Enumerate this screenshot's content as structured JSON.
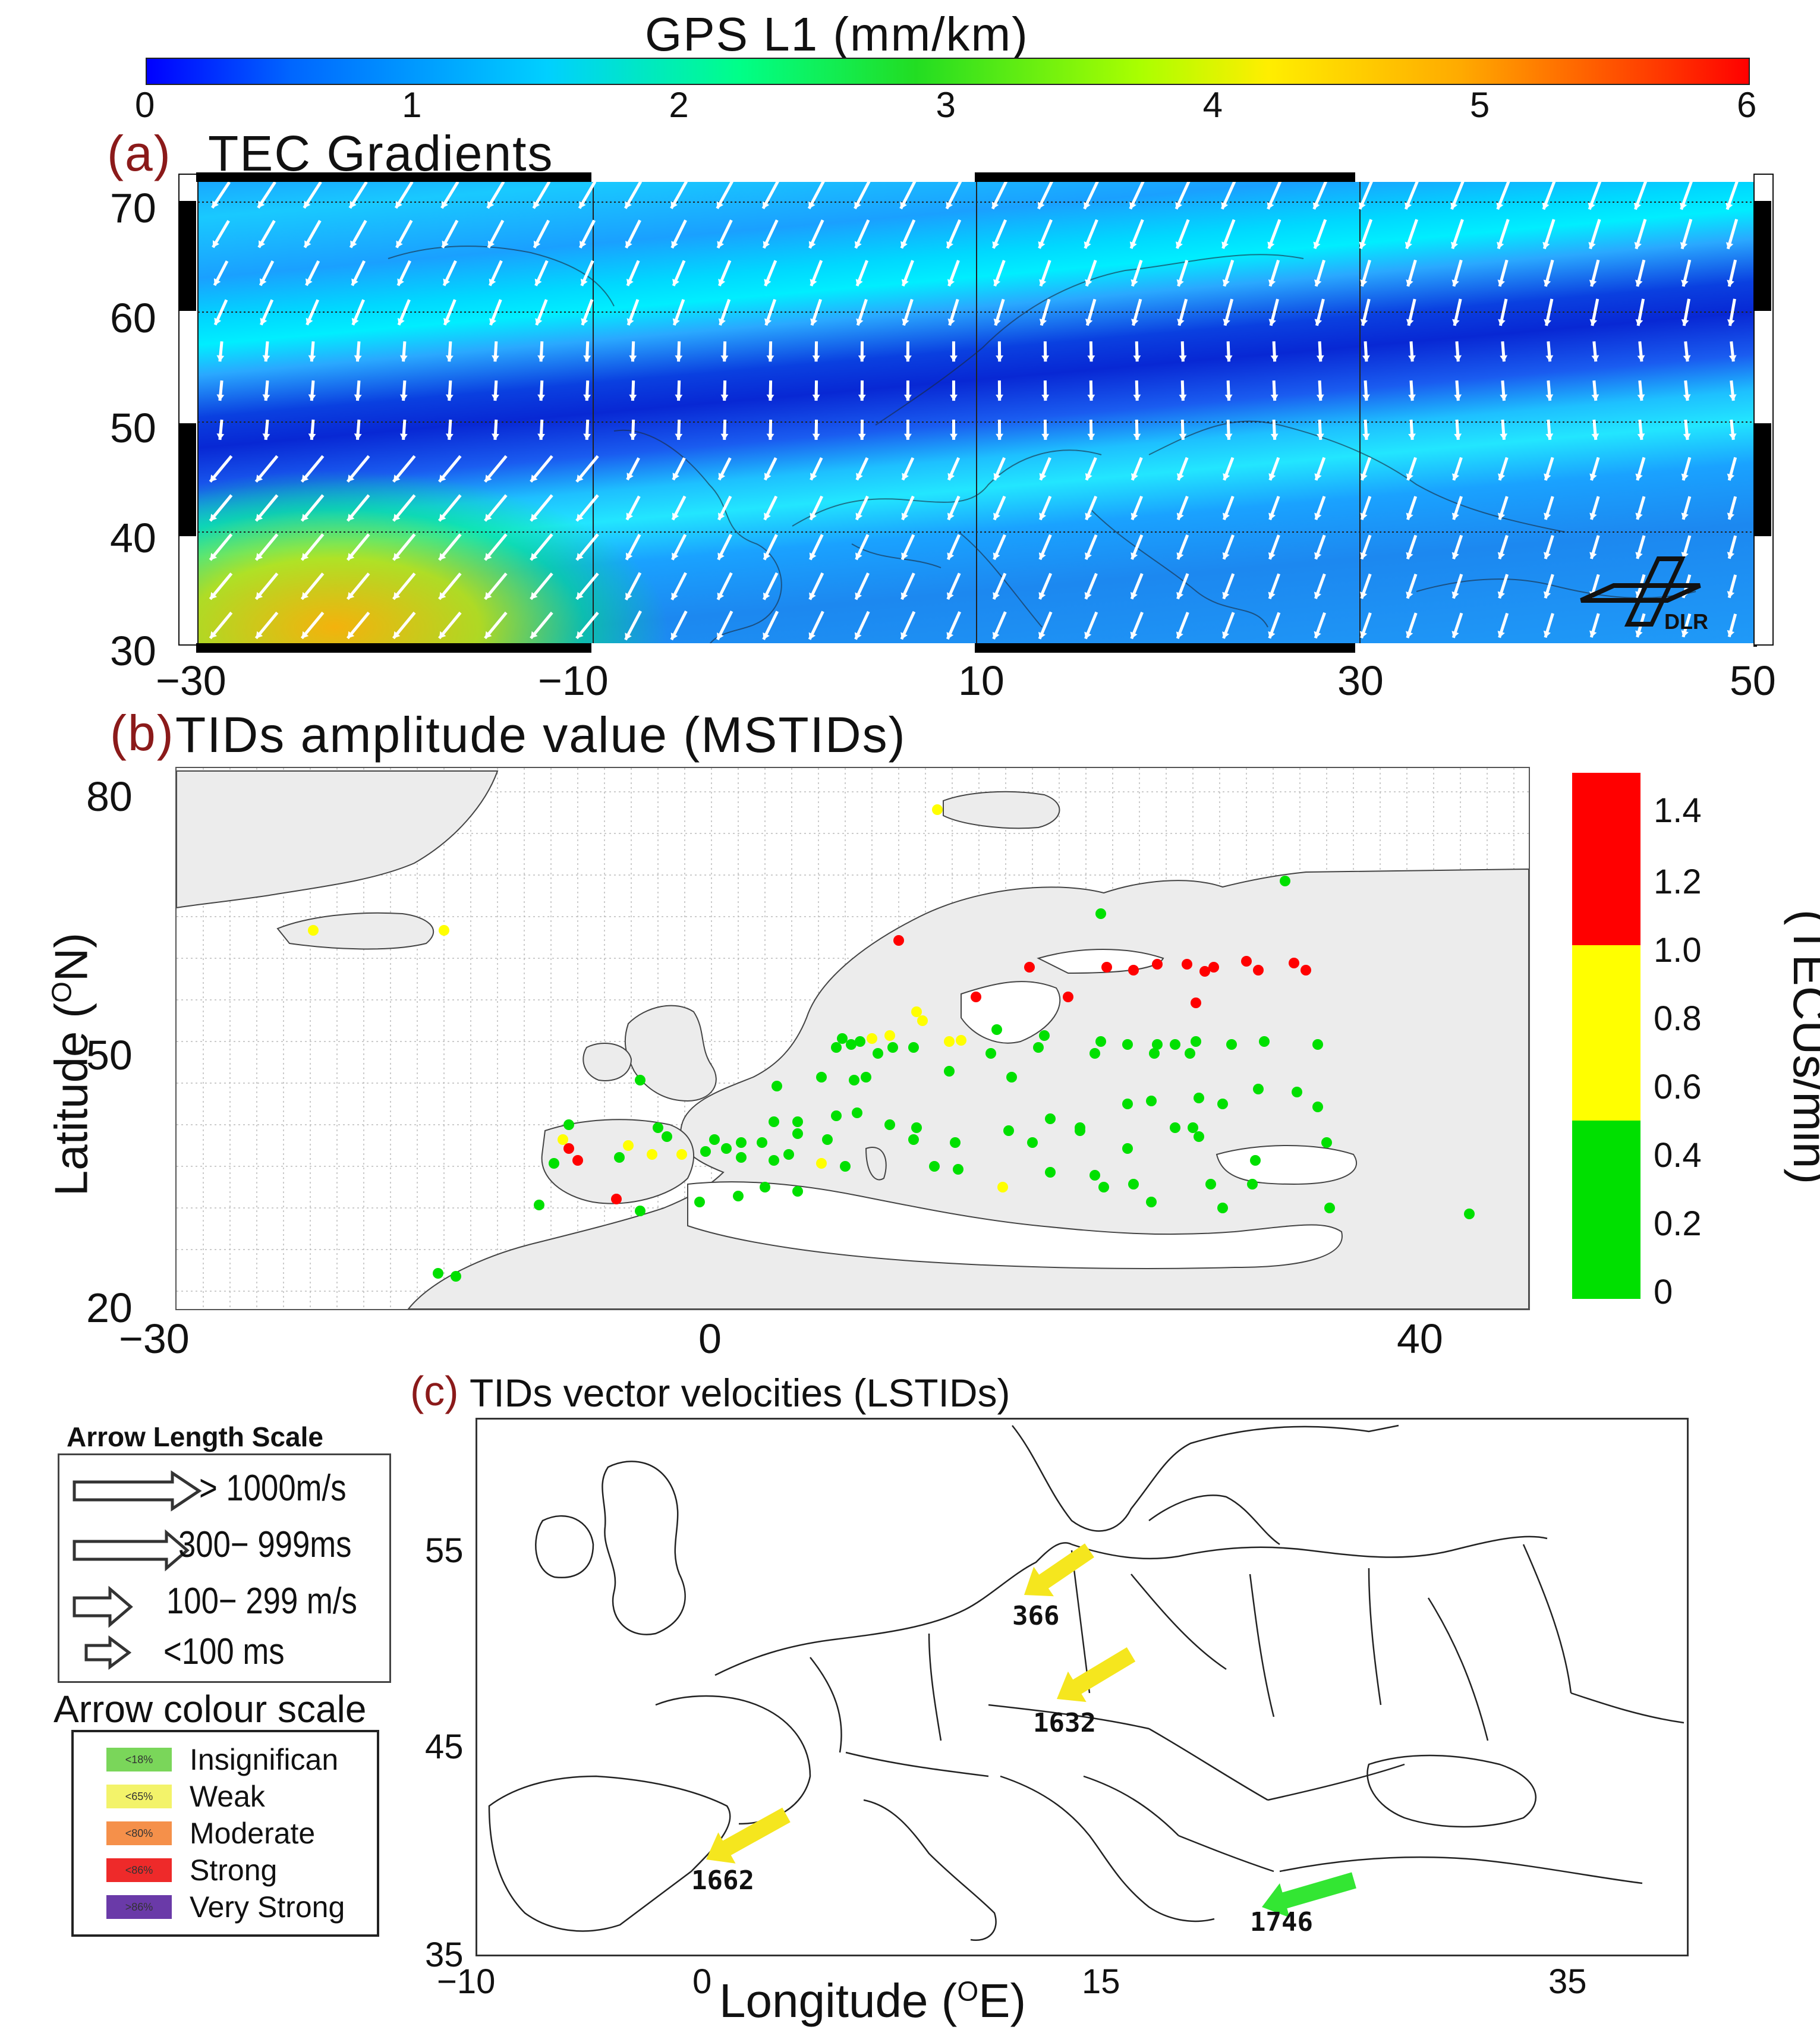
{
  "top_colorbar": {
    "title": "GPS L1 (mm/km)",
    "ticks": [
      "0",
      "1",
      "2",
      "3",
      "4",
      "5",
      "6"
    ]
  },
  "panel_a": {
    "tag": "(a)",
    "title": "TEC Gradients",
    "y_ticks": [
      "70",
      "60",
      "50",
      "40",
      "30"
    ],
    "x_ticks": [
      "−30",
      "−10",
      "10",
      "30",
      "50"
    ],
    "logo_text": "DLR"
  },
  "panel_b": {
    "tag": "(b)",
    "title": "TIDs amplitude value (MSTIDs)",
    "y_label": "Latitude (ON)",
    "y_label_main": "Latitude (",
    "y_label_sup": "O",
    "y_label_end": "N)",
    "y_ticks": [
      "80",
      "50",
      "20"
    ],
    "x_ticks": [
      "−30",
      "0",
      "40"
    ],
    "colorbar_label": "(TECUs/min)",
    "colorbar_ticks": [
      "1.4",
      "1.2",
      "1.0",
      "0.8",
      "0.6",
      "0.4",
      "0.2",
      "0"
    ],
    "colorbar_colors": {
      "high": "#ff0000",
      "mid": "#ffff00",
      "low": "#00e000"
    }
  },
  "panel_c": {
    "tag": "(c)",
    "title": "TIDs vector velocities (LSTIDs)",
    "y_ticks": [
      "55",
      "45",
      "35"
    ],
    "x_ticks": [
      "−10",
      "0",
      "15",
      "35"
    ],
    "x_label": "Longitude (OE)",
    "x_label_main": "Longitude (",
    "x_label_sup": "O",
    "x_label_end": "E)",
    "arrows": [
      {
        "label": "366",
        "color": "#f5e61e"
      },
      {
        "label": "1632",
        "color": "#f5e61e"
      },
      {
        "label": "1662",
        "color": "#f5e61e"
      },
      {
        "label": "1746",
        "color": "#33e633"
      }
    ]
  },
  "arrow_length_scale": {
    "title": "Arrow Length Scale",
    "items": [
      "> 1000m/s",
      "300− 999ms",
      "100− 299 m/s",
      "<100 ms"
    ]
  },
  "arrow_colour_scale": {
    "title": "Arrow colour scale",
    "items": [
      {
        "swatch": "<18%",
        "label": "Insignifican",
        "color": "#7ad65a"
      },
      {
        "swatch": "<65%",
        "label": "Weak",
        "color": "#f3f36a"
      },
      {
        "swatch": "<80%",
        "label": "Moderate",
        "color": "#f5904a"
      },
      {
        "swatch": "<86%",
        "label": "Strong",
        "color": "#ee2a2a"
      },
      {
        "swatch": ">86%",
        "label": "Very Strong",
        "color": "#6a3aa8"
      }
    ]
  }
}
